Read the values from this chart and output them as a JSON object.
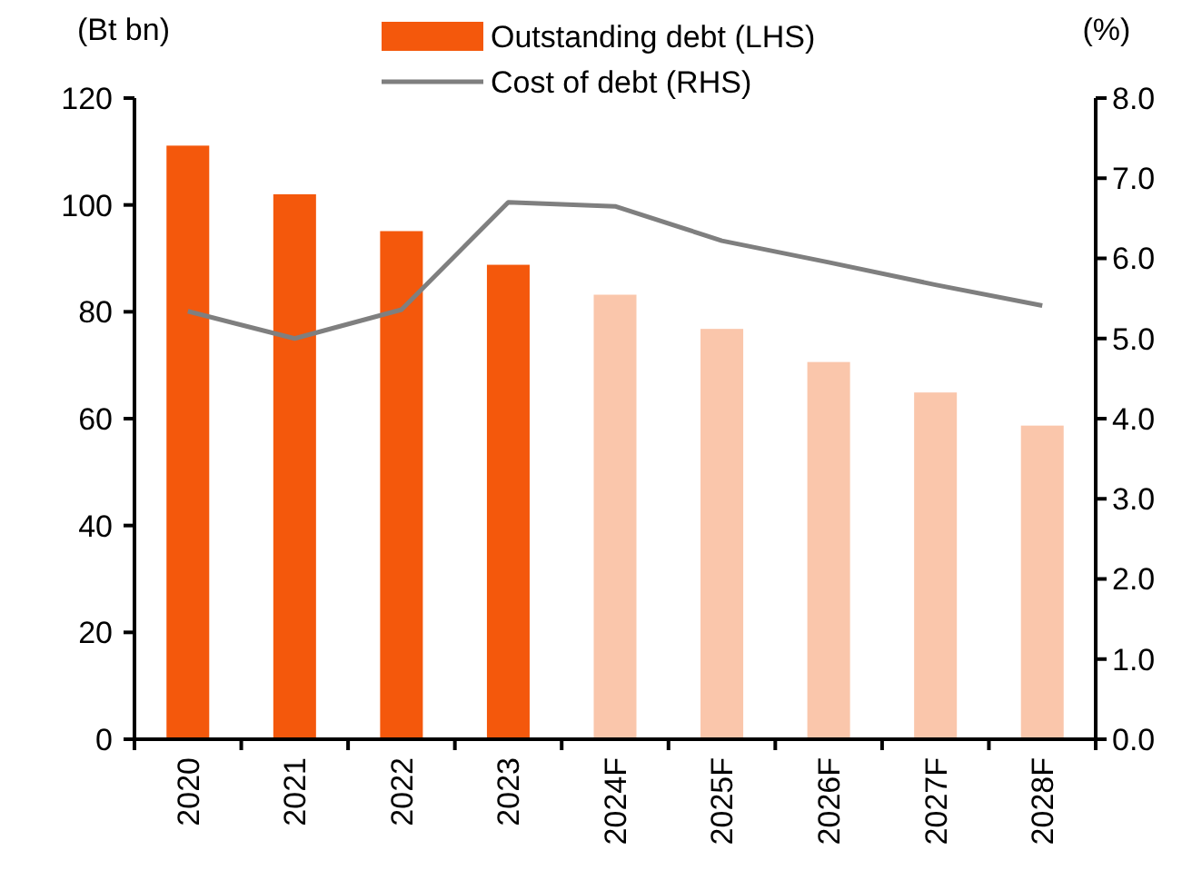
{
  "chart_data": {
    "type": "bar",
    "ylabel": "(Bt bn)",
    "y2label": "(%)",
    "categories": [
      "2020",
      "2021",
      "2022",
      "2023",
      "2024F",
      "2025F",
      "2026F",
      "2027F",
      "2028F"
    ],
    "series": [
      {
        "name": "Outstanding debt (LHS)",
        "color": "#f4580c",
        "colors": [
          "#f4580c",
          "#f4580c",
          "#f4580c",
          "#f4580c",
          "#fac6ab",
          "#fac6ab",
          "#fac6ab",
          "#fac6ab",
          "#fac6ab"
        ],
        "values": [
          111.1,
          102.0,
          95.1,
          88.8,
          83.2,
          76.8,
          70.6,
          64.9,
          58.7
        ]
      },
      {
        "name": "Cost of debt (RHS)",
        "type": "line",
        "axis": "y2",
        "color": "#7f7f7f",
        "values": [
          5.34,
          5.0,
          5.36,
          6.7,
          6.65,
          6.22,
          5.95,
          5.67,
          5.41
        ]
      }
    ],
    "ylim": [
      0,
      120
    ],
    "yticks": [
      0,
      20,
      40,
      60,
      80,
      100,
      120
    ],
    "y2lim": [
      0,
      8
    ],
    "y2ticks": [
      {
        "value": 0,
        "label": "0.0"
      },
      {
        "value": 1,
        "label": "1.0"
      },
      {
        "value": 2,
        "label": "2.0"
      },
      {
        "value": 3,
        "label": "3.0"
      },
      {
        "value": 4,
        "label": "4.0"
      },
      {
        "value": 5,
        "label": "5.0"
      },
      {
        "value": 6,
        "label": "6.0"
      },
      {
        "value": 7,
        "label": "7.0"
      },
      {
        "value": 8,
        "label": "8.0"
      }
    ],
    "legend": "top",
    "grid": false
  }
}
